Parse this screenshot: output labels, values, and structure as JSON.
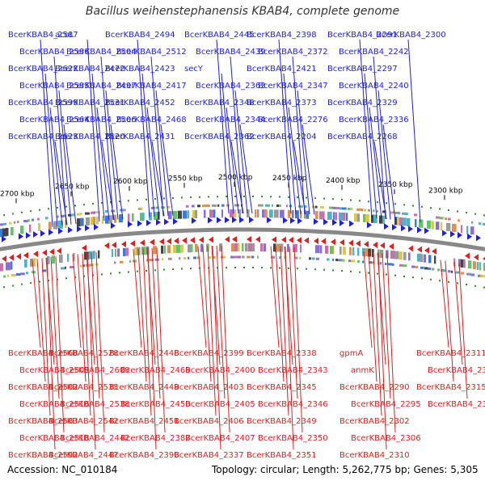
{
  "title": "Bacillus weihenstephanensis KBAB4, complete genome",
  "accession_text": "Accession: NC_010184",
  "summary_text": "Topology: circular; Length: 5,262,775 bp; Genes: 5,305",
  "colors": {
    "forward_strand": "#1f1fe0",
    "reverse_strand": "#e01f1f",
    "backbone": "#888888",
    "tick": "#2a8a2a"
  },
  "kbp_ticks": [
    "2300 kbp",
    "2350 kbp",
    "2400 kbp",
    "2450 kbp",
    "2500 kbp",
    "2550 kbp",
    "2600 kbp",
    "2650 kbp",
    "2700 kbp"
  ],
  "forward_labels": [
    "BcerKBAB4_2587",
    "BcerKBAB4_2586",
    "BcerKBAB4_2622",
    "BcerKBAB4_2585",
    "BcerKBAB4_2599",
    "BcerKBAB4_2564",
    "BcerKBAB4_2623",
    "acoL",
    "BcerKBAB4_2504",
    "BcerKBAB4_2472",
    "BcerKBAB4_2497",
    "BcerKBAB4_2531",
    "BcerKBAB4_2506",
    "BcerKBAB4_2520",
    "BcerKBAB4_2494",
    "BcerKBAB4_2512",
    "BcerKBAB4_2423",
    "BcerKBAB4_2417",
    "BcerKBAB4_2452",
    "BcerKBAB4_2468",
    "BcerKBAB4_2431",
    "BcerKBAB4_2445",
    "BcerKBAB4_2439",
    "secY",
    "BcerKBAB4_2363",
    "BcerKBAB4_2348",
    "BcerKBAB4_2344",
    "BcerKBAB4_2362",
    "BcerKBAB4_2398",
    "BcerKBAB4_2372",
    "BcerKBAB4_2421",
    "BcerKBAB4_2347",
    "BcerKBAB4_2373",
    "BcerKBAB4_2276",
    "BcerKBAB4_2204",
    "BcerKBAB4_2291",
    "BcerKBAB4_2242",
    "BcerKBAB4_2297",
    "BcerKBAB4_2240",
    "BcerKBAB4_2329",
    "BcerKBAB4_2336",
    "BcerKBAB4_2268",
    "BcerKBAB4_2300"
  ],
  "reverse_labels": [
    "BcerKBAB4_2568",
    "BcerKBAB4_2509",
    "BcerKBAB4_2582",
    "BcerKBAB4_2516",
    "BcerKBAB4_2583",
    "BcerKBAB4_2518",
    "BcerKBAB4_2592",
    "BcerKBAB4_2528",
    "BcerKBAB4_2609",
    "BcerKBAB4_2535",
    "BcerKBAB4_2538",
    "BcerKBAB4_2542",
    "BcerKBAB4_2442",
    "BcerKBAB4_2447",
    "BcerKBAB4_2448",
    "BcerKBAB4_2469",
    "BcerKBAB4_2449",
    "BcerKBAB4_2450",
    "BcerKBAB4_2451",
    "BcerKBAB4_2387",
    "BcerKBAB4_2396",
    "BcerKBAB4_2399",
    "BcerKBAB4_2400",
    "BcerKBAB4_2403",
    "BcerKBAB4_2405",
    "BcerKBAB4_2406",
    "BcerKBAB4_2407",
    "BcerKBAB4_2337",
    "BcerKBAB4_2338",
    "BcerKBAB4_2343",
    "BcerKBAB4_2345",
    "BcerKBAB4_2346",
    "BcerKBAB4_2349",
    "BcerKBAB4_2350",
    "BcerKBAB4_2351",
    "gpmA",
    "anmK",
    "BcerKBAB4_2290",
    "BcerKBAB4_2295",
    "BcerKBAB4_2302",
    "BcerKBAB4_2306",
    "BcerKBAB4_2310",
    "BcerKBAB4_2311",
    "BcerKBAB4_2312",
    "BcerKBAB4_2315",
    "BcerKBAB4_2319"
  ]
}
